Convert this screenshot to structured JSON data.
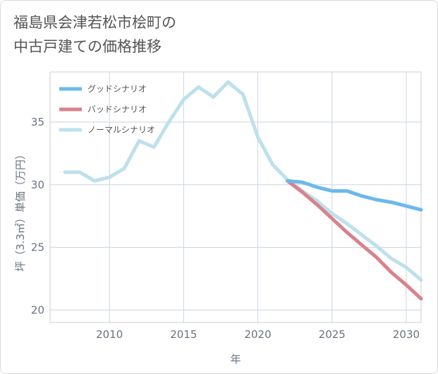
{
  "page": {
    "title_line1": "福島県会津若松市桧町の",
    "title_line2": "中古戸建ての価格推移"
  },
  "chart_data": {
    "type": "line",
    "xlabel": "年",
    "ylabel": "坪（3.3㎡）単価（万円）",
    "xlim": [
      2006,
      2031
    ],
    "ylim": [
      19,
      39
    ],
    "x_ticks": [
      2010,
      2015,
      2020,
      2025,
      2030
    ],
    "y_ticks": [
      20,
      25,
      30,
      35
    ],
    "grid": true,
    "legend_position": "top-left",
    "series": [
      {
        "name": "グッドシナリオ",
        "color": "#6cb8ec",
        "x": [
          2022,
          2023,
          2024,
          2025,
          2026,
          2027,
          2028,
          2029,
          2030,
          2031
        ],
        "y": [
          30.3,
          30.2,
          29.8,
          29.5,
          29.5,
          29.1,
          28.8,
          28.6,
          28.3,
          28.0
        ]
      },
      {
        "name": "バッドシナリオ",
        "color": "#d9828c",
        "x": [
          2022,
          2023,
          2024,
          2025,
          2026,
          2027,
          2028,
          2029,
          2030,
          2031
        ],
        "y": [
          30.3,
          29.4,
          28.4,
          27.3,
          26.2,
          25.2,
          24.2,
          23.0,
          22.0,
          20.9
        ]
      },
      {
        "name": "ノーマルシナリオ",
        "color": "#bde0ec",
        "x": [
          2007,
          2008,
          2009,
          2010,
          2011,
          2012,
          2013,
          2014,
          2015,
          2016,
          2017,
          2018,
          2019,
          2020,
          2021,
          2022,
          2023,
          2024,
          2025,
          2026,
          2027,
          2028,
          2029,
          2030,
          2031
        ],
        "y": [
          31.0,
          31.0,
          30.3,
          30.6,
          31.3,
          33.5,
          33.0,
          35.0,
          36.8,
          37.8,
          37.0,
          38.2,
          37.2,
          33.8,
          31.6,
          30.4,
          29.5,
          28.7,
          27.7,
          26.9,
          26.0,
          25.1,
          24.1,
          23.4,
          22.4
        ]
      }
    ]
  }
}
